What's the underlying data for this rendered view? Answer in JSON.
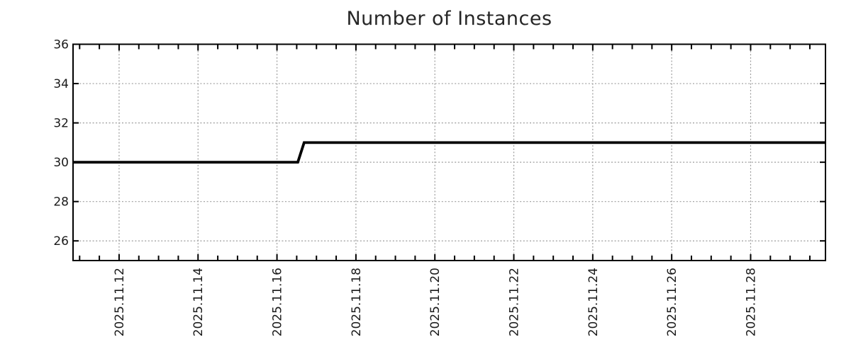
{
  "chart_data": {
    "type": "line",
    "title": "Number of Instances",
    "x_axis": {
      "tick_labels": [
        "2025.11.12",
        "2025.11.14",
        "2025.11.16",
        "2025.11.18",
        "2025.11.20",
        "2025.11.22",
        "2025.11.24",
        "2025.11.26",
        "2025.11.28"
      ],
      "major_interval_days": 2,
      "minor_interval_days": 0.5,
      "range": [
        "2025-11-10 20:00",
        "2025-11-29 21:30"
      ]
    },
    "y_axis": {
      "ticks": [
        26,
        28,
        30,
        32,
        34,
        36
      ],
      "range": [
        25,
        36
      ]
    },
    "grid": {
      "visible": true,
      "style": "dashed",
      "color": "#9c9c9c"
    },
    "axis_color": "#000000",
    "text_color": "#1a1a1a",
    "legend": "none",
    "series": [
      {
        "name": "instances",
        "color": "#000000",
        "points": [
          {
            "t": "2025-11-10 20:00",
            "v": 30
          },
          {
            "t": "2025-11-16 12:40",
            "v": 30
          },
          {
            "t": "2025-11-16 16:30",
            "v": 31
          },
          {
            "t": "2025-11-29 21:30",
            "v": 31
          }
        ]
      }
    ]
  }
}
